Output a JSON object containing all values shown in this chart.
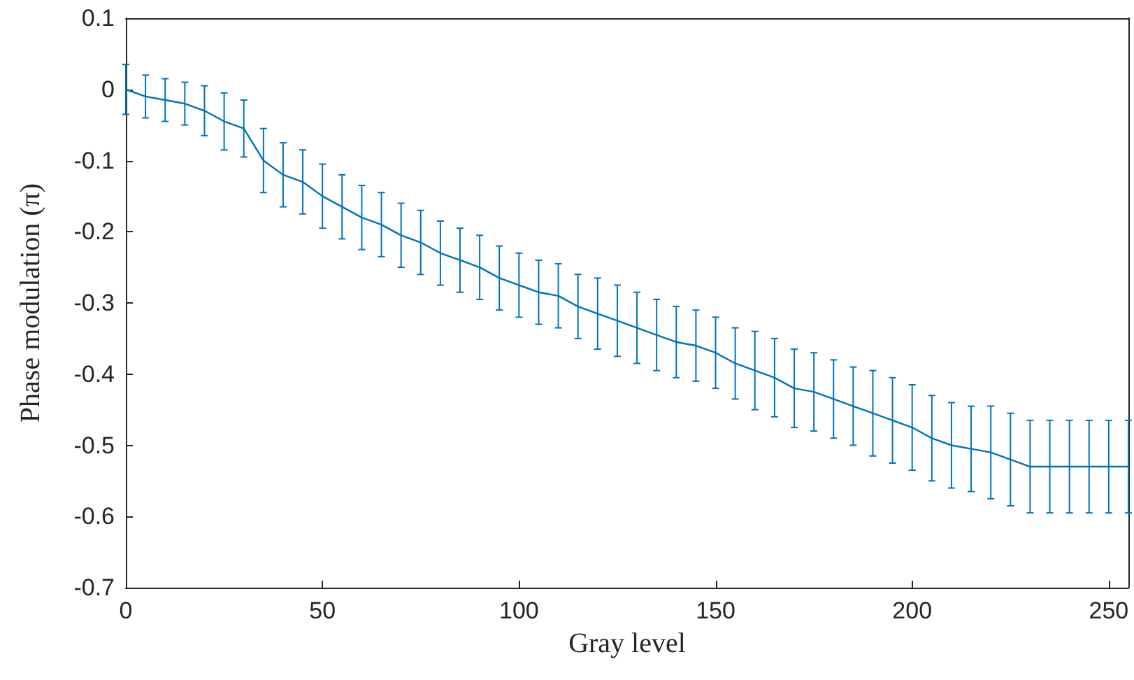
{
  "chart_data": {
    "type": "line",
    "xlabel": "Gray level",
    "ylabel": "Phase modulation (π)",
    "xlim": [
      0,
      255
    ],
    "xticks": [
      0,
      50,
      100,
      150,
      200,
      250
    ],
    "ylim": [
      -0.7,
      0.1
    ],
    "yticks": [
      -0.7,
      -0.6,
      -0.5,
      -0.4,
      -0.3,
      -0.2,
      -0.1,
      0,
      0.1
    ],
    "grid": false,
    "marker": "none",
    "line_style": "solid",
    "x": [
      0,
      5,
      10,
      15,
      20,
      25,
      30,
      35,
      40,
      45,
      50,
      55,
      60,
      65,
      70,
      75,
      80,
      85,
      90,
      95,
      100,
      105,
      110,
      115,
      120,
      125,
      130,
      135,
      140,
      145,
      150,
      155,
      160,
      165,
      170,
      175,
      180,
      185,
      190,
      195,
      200,
      205,
      210,
      215,
      220,
      225,
      230,
      235,
      240,
      245,
      250,
      255
    ],
    "series": [
      {
        "color": "#0072bd",
        "values": [
          0,
          -0.01,
          -0.015,
          -0.02,
          -0.03,
          -0.045,
          -0.055,
          -0.1,
          -0.12,
          -0.13,
          -0.15,
          -0.165,
          -0.18,
          -0.19,
          -0.205,
          -0.215,
          -0.23,
          -0.24,
          -0.25,
          -0.265,
          -0.275,
          -0.285,
          -0.29,
          -0.305,
          -0.315,
          -0.325,
          -0.335,
          -0.345,
          -0.355,
          -0.36,
          -0.37,
          -0.385,
          -0.395,
          -0.405,
          -0.42,
          -0.425,
          -0.435,
          -0.445,
          -0.455,
          -0.465,
          -0.475,
          -0.49,
          -0.5,
          -0.505,
          -0.51,
          -0.52,
          -0.53,
          -0.53,
          -0.53,
          -0.53,
          -0.53,
          -0.53
        ],
        "errors": [
          0.035,
          0.03,
          0.03,
          0.03,
          0.035,
          0.04,
          0.04,
          0.045,
          0.045,
          0.045,
          0.045,
          0.045,
          0.045,
          0.045,
          0.045,
          0.045,
          0.045,
          0.045,
          0.045,
          0.045,
          0.045,
          0.045,
          0.045,
          0.045,
          0.05,
          0.05,
          0.05,
          0.05,
          0.05,
          0.05,
          0.05,
          0.05,
          0.055,
          0.055,
          0.055,
          0.055,
          0.055,
          0.055,
          0.06,
          0.06,
          0.06,
          0.06,
          0.06,
          0.06,
          0.065,
          0.065,
          0.065,
          0.065,
          0.065,
          0.065,
          0.065,
          0.065
        ]
      }
    ]
  }
}
